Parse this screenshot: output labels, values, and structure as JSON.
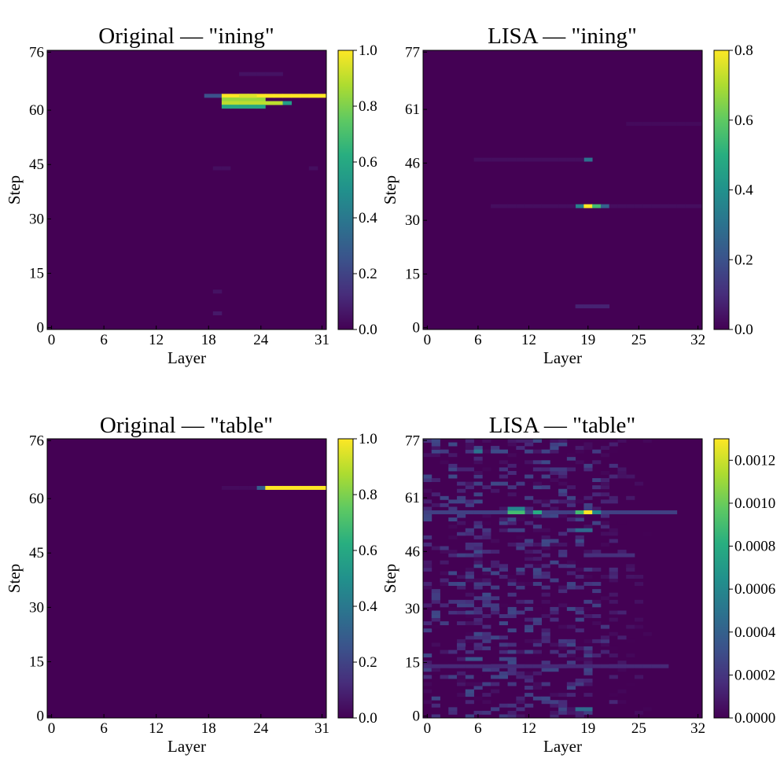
{
  "chart_data": [
    {
      "type": "heatmap",
      "title": "Original — \"ining\"",
      "xlabel": "Layer",
      "ylabel": "Step",
      "x_ticks": [
        "0",
        "6",
        "12",
        "18",
        "24",
        "31"
      ],
      "y_ticks": [
        "0",
        "15",
        "30",
        "45",
        "60",
        "76"
      ],
      "x_range": [
        0,
        31
      ],
      "y_range": [
        0,
        76
      ],
      "colorbar": {
        "min": 0,
        "max": 1.0,
        "ticks": [
          "0.0",
          "0.2",
          "0.4",
          "0.6",
          "0.8",
          "1.0"
        ]
      },
      "highlights": [
        {
          "step": 64,
          "layers": [
            18,
            19
          ],
          "value": 0.25
        },
        {
          "step": 64,
          "layers": [
            20,
            31
          ],
          "value": 1.0
        },
        {
          "step": 63,
          "layers": [
            20,
            24
          ],
          "value": 0.85
        },
        {
          "step": 62,
          "layers": [
            20,
            26
          ],
          "value": 0.9
        },
        {
          "step": 62,
          "layers": [
            27,
            27
          ],
          "value": 0.55
        },
        {
          "step": 61,
          "layers": [
            20,
            24
          ],
          "value": 0.6
        },
        {
          "step": 64,
          "layers": [
            22,
            23
          ],
          "value": 0.95
        },
        {
          "step": 70,
          "layers": [
            22,
            26
          ],
          "value": 0.05
        },
        {
          "step": 44,
          "layers": [
            19,
            20
          ],
          "value": 0.04
        },
        {
          "step": 44,
          "layers": [
            30,
            30
          ],
          "value": 0.04
        },
        {
          "step": 10,
          "layers": [
            19,
            19
          ],
          "value": 0.05
        },
        {
          "step": 4,
          "layers": [
            19,
            19
          ],
          "value": 0.07
        }
      ]
    },
    {
      "type": "heatmap",
      "title": "LISA — \"ining\"",
      "xlabel": "Layer",
      "ylabel": "Step",
      "x_ticks": [
        "0",
        "6",
        "12",
        "19",
        "25",
        "32"
      ],
      "y_ticks": [
        "0",
        "15",
        "30",
        "46",
        "61",
        "77"
      ],
      "x_range": [
        0,
        32
      ],
      "y_range": [
        0,
        77
      ],
      "colorbar": {
        "min": 0,
        "max": 0.8,
        "ticks": [
          "0.0",
          "0.2",
          "0.4",
          "0.6",
          "0.8"
        ]
      },
      "highlights": [
        {
          "step": 34,
          "layers": [
            18,
            18
          ],
          "value": 0.35
        },
        {
          "step": 34,
          "layers": [
            19,
            19
          ],
          "value": 0.8
        },
        {
          "step": 34,
          "layers": [
            20,
            20
          ],
          "value": 0.55
        },
        {
          "step": 34,
          "layers": [
            21,
            21
          ],
          "value": 0.25
        },
        {
          "step": 47,
          "layers": [
            19,
            19
          ],
          "value": 0.3
        },
        {
          "step": 47,
          "layers": [
            6,
            18
          ],
          "value": 0.03
        },
        {
          "step": 34,
          "layers": [
            8,
            17
          ],
          "value": 0.03
        },
        {
          "step": 34,
          "layers": [
            22,
            32
          ],
          "value": 0.03
        },
        {
          "step": 6,
          "layers": [
            18,
            21
          ],
          "value": 0.08
        },
        {
          "step": 57,
          "layers": [
            24,
            32
          ],
          "value": 0.02
        }
      ]
    },
    {
      "type": "heatmap",
      "title": "Original — \"table\"",
      "xlabel": "Layer",
      "ylabel": "Step",
      "x_ticks": [
        "0",
        "6",
        "12",
        "18",
        "24",
        "31"
      ],
      "y_ticks": [
        "0",
        "15",
        "30",
        "45",
        "60",
        "76"
      ],
      "x_range": [
        0,
        31
      ],
      "y_range": [
        0,
        76
      ],
      "colorbar": {
        "min": 0,
        "max": 1.0,
        "ticks": [
          "0.0",
          "0.2",
          "0.4",
          "0.6",
          "0.8",
          "1.0"
        ]
      },
      "highlights": [
        {
          "step": 63,
          "layers": [
            24,
            24
          ],
          "value": 0.3
        },
        {
          "step": 63,
          "layers": [
            25,
            31
          ],
          "value": 1.0
        },
        {
          "step": 63,
          "layers": [
            20,
            23
          ],
          "value": 0.03
        }
      ]
    },
    {
      "type": "heatmap",
      "title": "LISA — \"table\"",
      "xlabel": "Layer",
      "ylabel": "Step",
      "x_ticks": [
        "0",
        "6",
        "12",
        "19",
        "25",
        "32"
      ],
      "y_ticks": [
        "0",
        "15",
        "30",
        "46",
        "61",
        "77"
      ],
      "x_range": [
        0,
        32
      ],
      "y_range": [
        0,
        77
      ],
      "colorbar": {
        "min": 0,
        "max": 0.0013,
        "ticks": [
          "0.0000",
          "0.0002",
          "0.0004",
          "0.0006",
          "0.0008",
          "0.0010",
          "0.0012"
        ]
      },
      "highlights": [
        {
          "step": 57,
          "layers": [
            0,
            29
          ],
          "value": 0.00025
        },
        {
          "step": 57,
          "layers": [
            10,
            11
          ],
          "value": 0.0009
        },
        {
          "step": 57,
          "layers": [
            13,
            13
          ],
          "value": 0.0008
        },
        {
          "step": 57,
          "layers": [
            18,
            18
          ],
          "value": 0.0009
        },
        {
          "step": 57,
          "layers": [
            19,
            19
          ],
          "value": 0.0013
        },
        {
          "step": 57,
          "layers": [
            20,
            20
          ],
          "value": 0.0006
        },
        {
          "step": 58,
          "layers": [
            10,
            11
          ],
          "value": 0.0006
        },
        {
          "step": 52,
          "layers": [
            18,
            19
          ],
          "value": 0.00045
        },
        {
          "step": 74,
          "layers": [
            6,
            6
          ],
          "value": 0.0005
        },
        {
          "step": 74,
          "layers": [
            8,
            9
          ],
          "value": 0.0003
        },
        {
          "step": 14,
          "layers": [
            8,
            10
          ],
          "value": 0.00045
        },
        {
          "step": 16,
          "layers": [
            5,
            6
          ],
          "value": 0.00035
        },
        {
          "step": 2,
          "layers": [
            18,
            19
          ],
          "value": 0.00045
        },
        {
          "step": 14,
          "layers": [
            0,
            28
          ],
          "value": 0.00015
        },
        {
          "step": 45,
          "layers": [
            19,
            24
          ],
          "value": 0.00018
        }
      ],
      "noise": {
        "max_value": 0.0003,
        "layer_limit": 19
      }
    }
  ]
}
